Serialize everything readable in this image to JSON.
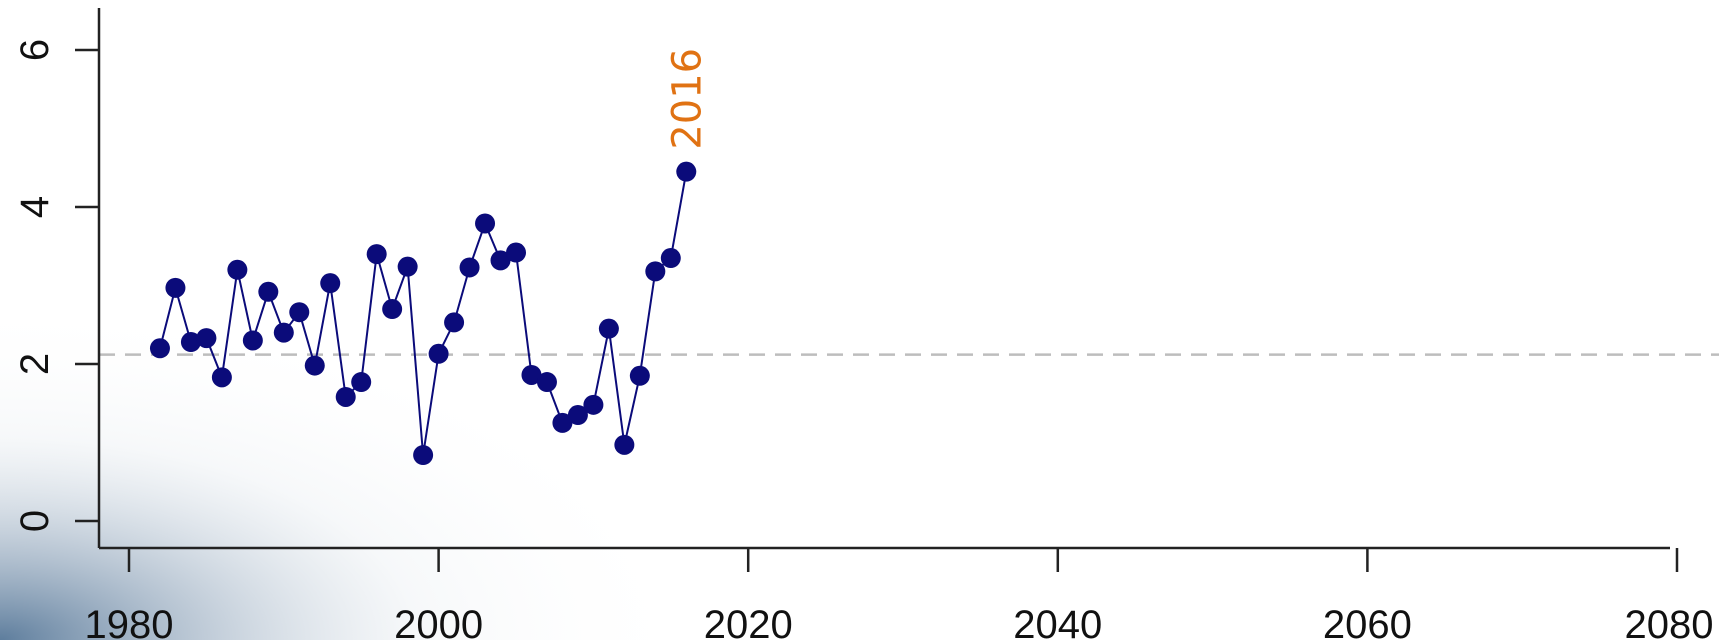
{
  "colors": {
    "series": "#0b0b7a",
    "annotation": "#e07213",
    "reference_line": "#bdbdbd",
    "axis": "#222222"
  },
  "chart_data": {
    "type": "line",
    "title": "",
    "xlabel": "",
    "ylabel": "",
    "xlim": [
      1979,
      2082
    ],
    "ylim": [
      -0.3,
      6.8
    ],
    "x_ticks": [
      1980,
      2000,
      2020,
      2040,
      2060,
      2080
    ],
    "y_ticks": [
      0,
      2,
      4,
      6
    ],
    "x_tick_labels": [
      "1980",
      "2000",
      "2020",
      "2040",
      "2060",
      "2080"
    ],
    "y_tick_labels": [
      "0",
      "2",
      "4",
      "6"
    ],
    "reference_line": {
      "y": 2.12,
      "style": "dashed"
    },
    "annotation": {
      "text": "2016",
      "x": 2016,
      "y": 4.45
    },
    "grid": false,
    "series": [
      {
        "x": [
          1982,
          1983,
          1984,
          1985,
          1986,
          1987,
          1988,
          1989,
          1990,
          1991,
          1992,
          1993,
          1994,
          1995,
          1996,
          1997,
          1998,
          1999,
          2000,
          2001,
          2002,
          2003,
          2004,
          2005,
          2006,
          2007,
          2008,
          2009,
          2010,
          2011,
          2012,
          2013,
          2014,
          2015,
          2016
        ],
        "values": [
          2.2,
          2.97,
          2.28,
          2.33,
          1.83,
          3.2,
          2.3,
          2.92,
          2.4,
          2.66,
          1.98,
          3.03,
          1.58,
          1.77,
          3.4,
          2.7,
          3.24,
          0.84,
          2.13,
          2.53,
          3.23,
          3.79,
          3.32,
          3.42,
          1.86,
          1.77,
          1.25,
          1.35,
          1.48,
          2.45,
          0.97,
          1.85,
          3.18,
          3.35,
          4.45
        ]
      }
    ]
  }
}
